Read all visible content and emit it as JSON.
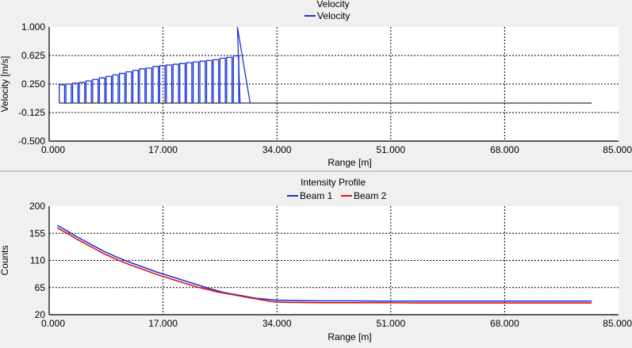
{
  "colors": {
    "background": "#f0f0f0",
    "plot_bg": "#ffffff",
    "beam1": "#1a33d6",
    "beam2": "#e01515",
    "velocity_series": "#1a33d6",
    "baseline": "#000000"
  },
  "chart_data": [
    {
      "type": "line",
      "title": "Velocity",
      "legend": {
        "position": "top-center",
        "entries": [
          "Velocity"
        ]
      },
      "xlabel": "Range [m]",
      "ylabel": "Velocity [m/s]",
      "xlim": [
        0,
        85
      ],
      "ylim": [
        -0.5,
        1.0
      ],
      "xticks": [
        "0.000",
        "17.000",
        "34.000",
        "51.000",
        "68.000",
        "85.000"
      ],
      "yticks": [
        "-0.500",
        "-0.125",
        "0.250",
        "0.625",
        "1.000"
      ],
      "xtick_values": [
        0,
        17,
        34,
        51,
        68,
        85
      ],
      "ytick_values": [
        -0.5,
        -0.125,
        0.25,
        0.625,
        1.0
      ],
      "grid": true,
      "series": [
        {
          "name": "Velocity",
          "color": "#1a33d6",
          "spike_positions": [
            1.5,
            2.5,
            3.5,
            4.5,
            5.5,
            6.5,
            7.5,
            8.5,
            9.5,
            10.5,
            11.5,
            12.5,
            13.5,
            14.5,
            15.5,
            16.5,
            17.5,
            18.5,
            19.5,
            20.5,
            21.5,
            22.5,
            23.5,
            24.5,
            25.5,
            26.5,
            27.5,
            28.5
          ],
          "spike_peaks": [
            0.24,
            0.25,
            0.26,
            0.27,
            0.29,
            0.31,
            0.33,
            0.35,
            0.37,
            0.39,
            0.41,
            0.43,
            0.45,
            0.46,
            0.48,
            0.49,
            0.5,
            0.51,
            0.52,
            0.53,
            0.54,
            0.55,
            0.56,
            0.57,
            0.59,
            0.6,
            0.62,
            1.0
          ],
          "baseline": 0.0,
          "baseline_end": 81.0
        }
      ]
    },
    {
      "type": "line",
      "title": "Intensity Profile",
      "legend": {
        "position": "top-center",
        "entries": [
          "Beam 1",
          "Beam 2"
        ]
      },
      "xlabel": "Range [m]",
      "ylabel": "Counts",
      "xlim": [
        0,
        85
      ],
      "ylim": [
        20,
        200
      ],
      "xticks": [
        "0.000",
        "17.000",
        "34.000",
        "51.000",
        "68.000",
        "85.000"
      ],
      "yticks": [
        "20",
        "65",
        "110",
        "155",
        "200"
      ],
      "xtick_values": [
        0,
        17,
        34,
        51,
        68,
        85
      ],
      "ytick_values": [
        20,
        65,
        110,
        155,
        200
      ],
      "grid": true,
      "series": [
        {
          "name": "Beam 1",
          "color": "#1a33d6",
          "x": [
            1.2,
            2.5,
            4,
            6,
            8,
            10,
            12,
            14,
            16,
            18,
            20,
            22,
            24,
            25,
            26,
            27,
            28,
            29,
            30,
            31,
            32,
            33,
            34,
            36,
            40,
            45,
            50,
            55,
            60,
            65,
            70,
            75,
            81
          ],
          "y": [
            168,
            160,
            150,
            138,
            126,
            116,
            107,
            99,
            91,
            84,
            77,
            70,
            63,
            60,
            57,
            55,
            53,
            51,
            49,
            47,
            46,
            45,
            44,
            43.5,
            43,
            43,
            42.5,
            42.5,
            42.5,
            42.5,
            42.5,
            42.5,
            42.5
          ]
        },
        {
          "name": "Beam 2",
          "color": "#e01515",
          "x": [
            1.2,
            2.5,
            4,
            6,
            8,
            10,
            12,
            14,
            16,
            18,
            20,
            22,
            24,
            25,
            26,
            27,
            28,
            29,
            30,
            31,
            32,
            33,
            34,
            36,
            40,
            45,
            50,
            55,
            60,
            65,
            70,
            75,
            81
          ],
          "y": [
            164,
            156,
            146,
            134,
            122,
            112,
            103,
            95,
            87,
            80,
            73,
            66,
            61,
            58,
            56,
            54,
            52,
            50,
            48,
            46,
            44,
            42,
            41,
            40.5,
            40,
            40,
            40,
            39.5,
            39.5,
            39.5,
            39.5,
            39.5,
            39.5
          ]
        }
      ]
    }
  ]
}
